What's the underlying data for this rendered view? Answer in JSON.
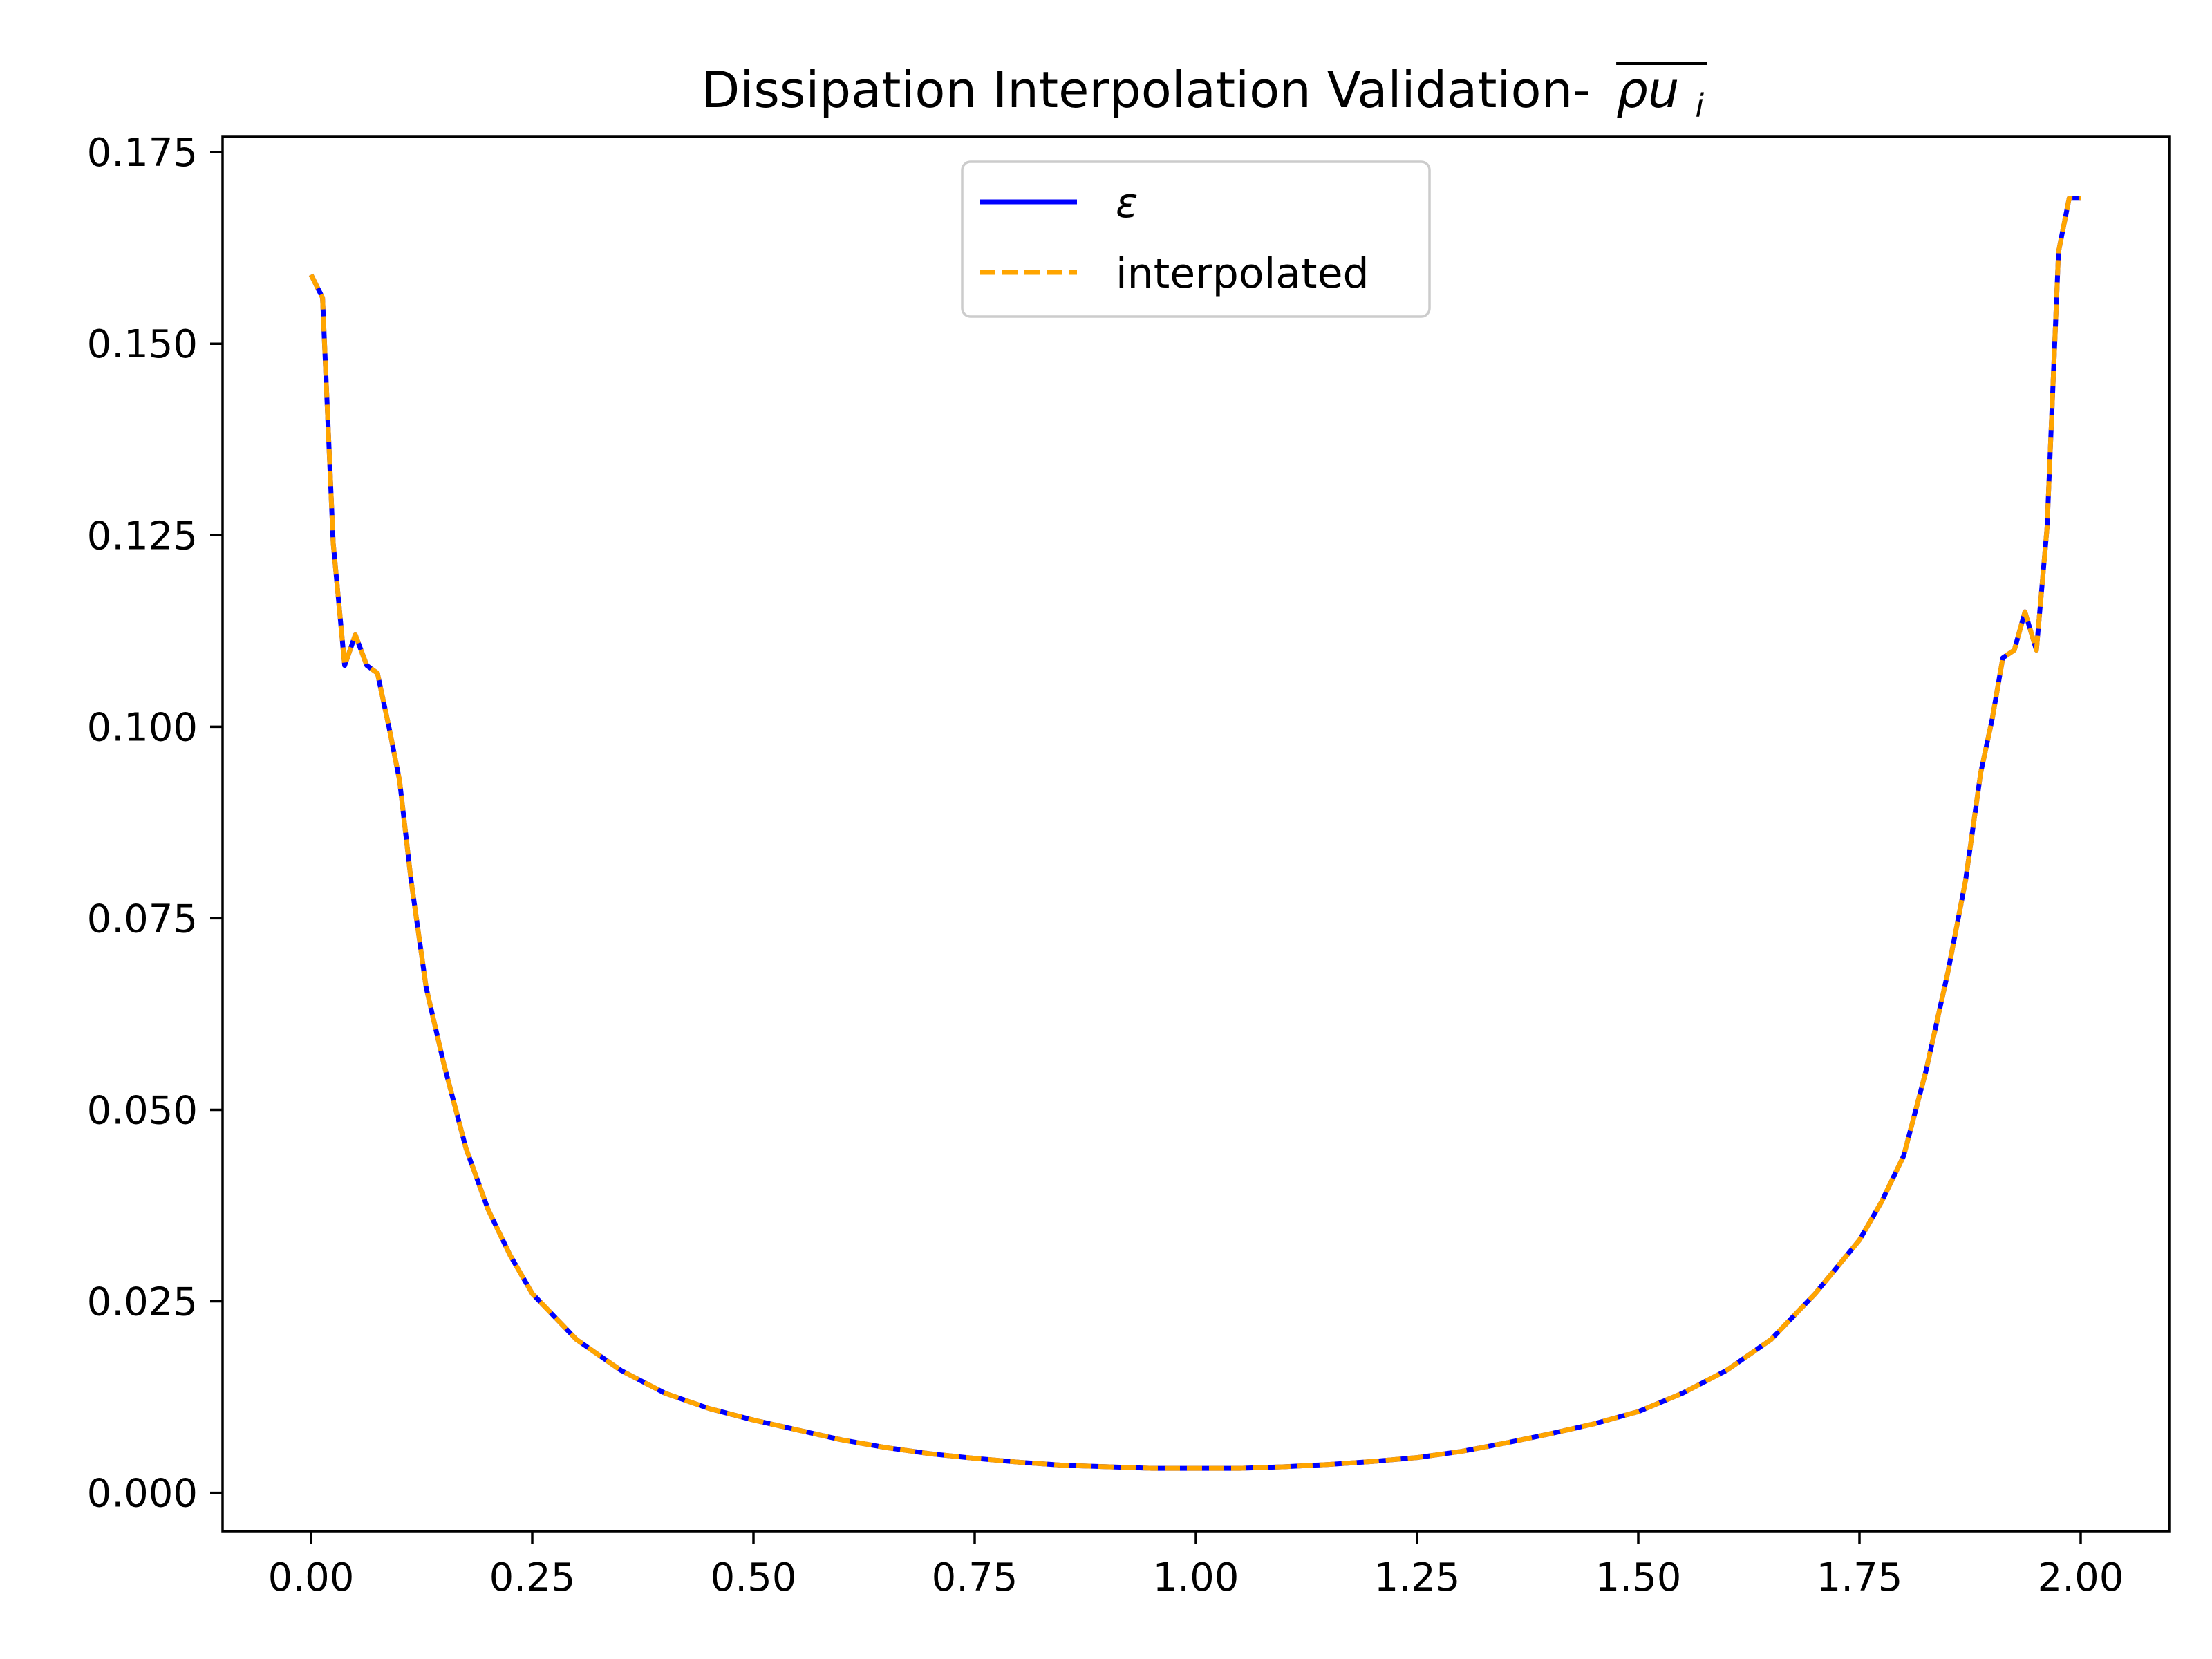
{
  "chart_data": {
    "type": "line",
    "title": "Dissipation Interpolation Validation-",
    "title_math": "ρu",
    "title_math_sub": "i",
    "xlabel": "",
    "ylabel": "",
    "xlim": [
      -0.1,
      2.1
    ],
    "ylim": [
      -0.005,
      0.177
    ],
    "xticks": [
      0.0,
      0.25,
      0.5,
      0.75,
      1.0,
      1.25,
      1.5,
      1.75,
      2.0
    ],
    "xtick_labels": [
      "0.00",
      "0.25",
      "0.50",
      "0.75",
      "1.00",
      "1.25",
      "1.50",
      "1.75",
      "2.00"
    ],
    "yticks": [
      0.0,
      0.025,
      0.05,
      0.075,
      0.1,
      0.125,
      0.15,
      0.175
    ],
    "ytick_labels": [
      "0.000",
      "0.025",
      "0.050",
      "0.075",
      "0.100",
      "0.125",
      "0.150",
      "0.175"
    ],
    "grid": false,
    "legend_position": "top-center",
    "x": [
      0.0,
      0.013,
      0.025,
      0.038,
      0.05,
      0.063,
      0.075,
      0.088,
      0.1,
      0.113,
      0.13,
      0.15,
      0.175,
      0.2,
      0.225,
      0.25,
      0.3,
      0.35,
      0.4,
      0.45,
      0.5,
      0.55,
      0.6,
      0.65,
      0.7,
      0.75,
      0.8,
      0.85,
      0.9,
      0.95,
      1.0,
      1.05,
      1.1,
      1.15,
      1.2,
      1.25,
      1.3,
      1.35,
      1.4,
      1.45,
      1.5,
      1.55,
      1.6,
      1.65,
      1.7,
      1.75,
      1.775,
      1.8,
      1.825,
      1.85,
      1.87,
      1.887,
      1.9,
      1.912,
      1.925,
      1.937,
      1.95,
      1.962,
      1.975,
      1.987,
      2.0
    ],
    "series": [
      {
        "name": "ε",
        "color": "#0000ff",
        "style": "solid",
        "values": [
          0.159,
          0.156,
          0.124,
          0.108,
          0.112,
          0.108,
          0.107,
          0.1,
          0.093,
          0.08,
          0.066,
          0.056,
          0.045,
          0.037,
          0.031,
          0.026,
          0.02,
          0.016,
          0.013,
          0.011,
          0.0095,
          0.0082,
          0.0069,
          0.0059,
          0.0051,
          0.0045,
          0.004,
          0.0036,
          0.0034,
          0.0032,
          0.0032,
          0.0032,
          0.0034,
          0.0037,
          0.0041,
          0.0046,
          0.0054,
          0.0065,
          0.0077,
          0.009,
          0.0106,
          0.013,
          0.016,
          0.02,
          0.026,
          0.033,
          0.038,
          0.044,
          0.055,
          0.068,
          0.08,
          0.094,
          0.101,
          0.109,
          0.11,
          0.115,
          0.11,
          0.126,
          0.162,
          0.169,
          0.169
        ]
      },
      {
        "name": "interpolated",
        "color": "#ffa500",
        "style": "dashed",
        "values": [
          0.159,
          0.156,
          0.124,
          0.108,
          0.112,
          0.108,
          0.107,
          0.1,
          0.093,
          0.08,
          0.066,
          0.056,
          0.045,
          0.037,
          0.031,
          0.026,
          0.02,
          0.016,
          0.013,
          0.011,
          0.0095,
          0.0082,
          0.0069,
          0.0059,
          0.0051,
          0.0045,
          0.004,
          0.0036,
          0.0034,
          0.0032,
          0.0032,
          0.0032,
          0.0034,
          0.0037,
          0.0041,
          0.0046,
          0.0054,
          0.0065,
          0.0077,
          0.009,
          0.0106,
          0.013,
          0.016,
          0.02,
          0.026,
          0.033,
          0.038,
          0.044,
          0.055,
          0.068,
          0.08,
          0.094,
          0.101,
          0.109,
          0.11,
          0.115,
          0.11,
          0.126,
          0.162,
          0.169,
          0.169
        ]
      }
    ]
  }
}
